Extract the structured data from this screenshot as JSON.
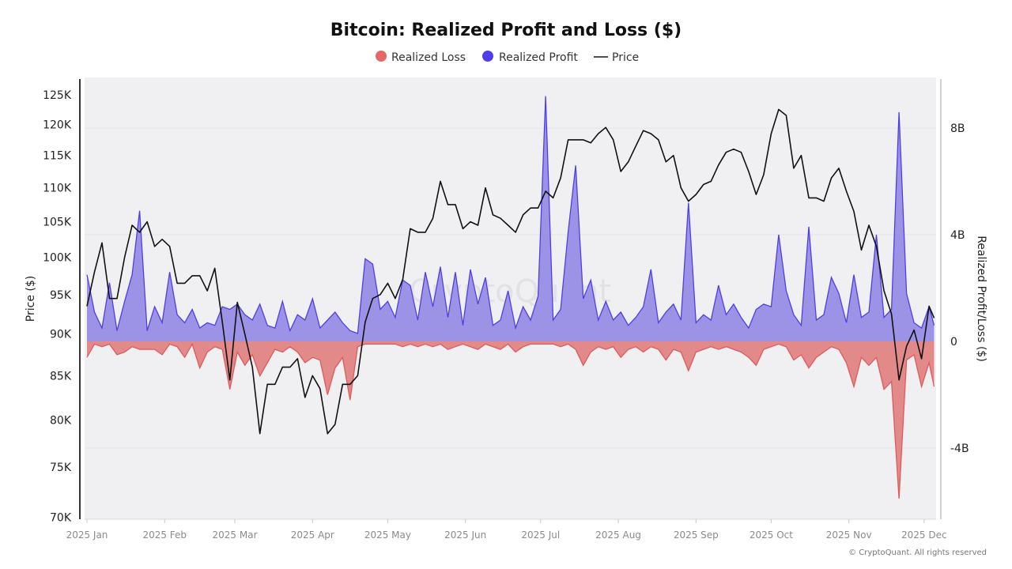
{
  "chart_data": {
    "type": "area",
    "title": "Bitcoin: Realized Profit and Loss ($)",
    "legend": {
      "placement": "top",
      "entries": [
        {
          "label": "Realized Loss",
          "marker": "circle",
          "color": "#e36868"
        },
        {
          "label": "Realized Profit",
          "marker": "circle",
          "color": "#4f3ee6"
        },
        {
          "label": "Price",
          "marker": "line",
          "color": "#111111"
        }
      ]
    },
    "y_left": {
      "label": "Price ($)",
      "scale": "log",
      "ylim": [
        69800,
        128000
      ],
      "ticks": [
        {
          "v": 125000,
          "t": "125K"
        },
        {
          "v": 120000,
          "t": "120K"
        },
        {
          "v": 115000,
          "t": "115K"
        },
        {
          "v": 110000,
          "t": "110K"
        },
        {
          "v": 105000,
          "t": "105K"
        },
        {
          "v": 100000,
          "t": "100K"
        },
        {
          "v": 95000,
          "t": "95K"
        },
        {
          "v": 90000,
          "t": "90K"
        },
        {
          "v": 85000,
          "t": "85K"
        },
        {
          "v": 80000,
          "t": "80K"
        },
        {
          "v": 75000,
          "t": "75K"
        },
        {
          "v": 70000,
          "t": "70K"
        }
      ]
    },
    "y_right": {
      "label": "Realized Profit/Loss ($)",
      "scale": "linear",
      "unit": "billions",
      "ylim": [
        -6.67,
        9.9
      ],
      "ticks": [
        {
          "v": 8,
          "t": "8B"
        },
        {
          "v": 4,
          "t": "4B"
        },
        {
          "v": 0,
          "t": "0"
        },
        {
          "v": -4,
          "t": "-4B"
        }
      ]
    },
    "grid": true,
    "x_ticks": [
      {
        "d": "2025-01-01",
        "t": "2025 Jan"
      },
      {
        "d": "2025-02-01",
        "t": "2025 Feb"
      },
      {
        "d": "2025-03-01",
        "t": "2025 Mar"
      },
      {
        "d": "2025-04-01",
        "t": "2025 Apr"
      },
      {
        "d": "2025-05-01",
        "t": "2025 May"
      },
      {
        "d": "2025-06-01",
        "t": "2025 Jun"
      },
      {
        "d": "2025-07-01",
        "t": "2025 Jul"
      },
      {
        "d": "2025-08-01",
        "t": "2025 Aug"
      },
      {
        "d": "2025-09-01",
        "t": "2025 Sep"
      },
      {
        "d": "2025-10-01",
        "t": "2025 Oct"
      },
      {
        "d": "2025-11-01",
        "t": "2025 Nov"
      },
      {
        "d": "2025-12-01",
        "t": "2025 Dec"
      }
    ],
    "dates": [
      "2025-01-01",
      "2025-01-04",
      "2025-01-07",
      "2025-01-10",
      "2025-01-13",
      "2025-01-16",
      "2025-01-19",
      "2025-01-22",
      "2025-01-25",
      "2025-01-28",
      "2025-01-31",
      "2025-02-03",
      "2025-02-06",
      "2025-02-09",
      "2025-02-12",
      "2025-02-15",
      "2025-02-18",
      "2025-02-21",
      "2025-02-24",
      "2025-02-27",
      "2025-03-02",
      "2025-03-05",
      "2025-03-08",
      "2025-03-11",
      "2025-03-14",
      "2025-03-17",
      "2025-03-20",
      "2025-03-23",
      "2025-03-26",
      "2025-03-29",
      "2025-04-01",
      "2025-04-04",
      "2025-04-07",
      "2025-04-10",
      "2025-04-13",
      "2025-04-16",
      "2025-04-19",
      "2025-04-22",
      "2025-04-25",
      "2025-04-28",
      "2025-05-01",
      "2025-05-04",
      "2025-05-07",
      "2025-05-10",
      "2025-05-13",
      "2025-05-16",
      "2025-05-19",
      "2025-05-22",
      "2025-05-25",
      "2025-05-28",
      "2025-05-31",
      "2025-06-03",
      "2025-06-06",
      "2025-06-09",
      "2025-06-12",
      "2025-06-15",
      "2025-06-18",
      "2025-06-21",
      "2025-06-24",
      "2025-06-27",
      "2025-06-30",
      "2025-07-03",
      "2025-07-06",
      "2025-07-09",
      "2025-07-12",
      "2025-07-15",
      "2025-07-18",
      "2025-07-21",
      "2025-07-24",
      "2025-07-27",
      "2025-07-30",
      "2025-08-02",
      "2025-08-05",
      "2025-08-08",
      "2025-08-11",
      "2025-08-14",
      "2025-08-17",
      "2025-08-20",
      "2025-08-23",
      "2025-08-26",
      "2025-08-29",
      "2025-09-01",
      "2025-09-04",
      "2025-09-07",
      "2025-09-10",
      "2025-09-13",
      "2025-09-16",
      "2025-09-19",
      "2025-09-22",
      "2025-09-25",
      "2025-09-28",
      "2025-10-01",
      "2025-10-04",
      "2025-10-07",
      "2025-10-10",
      "2025-10-13",
      "2025-10-16",
      "2025-10-19",
      "2025-10-22",
      "2025-10-25",
      "2025-10-28",
      "2025-10-31",
      "2025-11-03",
      "2025-11-06",
      "2025-11-09",
      "2025-11-12",
      "2025-11-15",
      "2025-11-18",
      "2025-11-21",
      "2025-11-24",
      "2025-11-27",
      "2025-11-30",
      "2025-12-03",
      "2025-12-05"
    ],
    "series": [
      {
        "name": "Price",
        "axis": "left",
        "color": "#111111",
        "values": [
          93500,
          98000,
          102000,
          94500,
          94500,
          100000,
          104500,
          103500,
          105000,
          101500,
          102500,
          101500,
          96500,
          96500,
          97500,
          97500,
          95500,
          98500,
          91500,
          84500,
          94000,
          90000,
          86000,
          78500,
          84000,
          84000,
          86000,
          86000,
          87000,
          82500,
          85000,
          83500,
          78500,
          79500,
          84000,
          84000,
          85000,
          91500,
          94500,
          95000,
          96500,
          94500,
          97000,
          104000,
          103500,
          103500,
          105500,
          111000,
          107500,
          107500,
          104000,
          105000,
          104500,
          110000,
          106000,
          105500,
          104500,
          103500,
          106000,
          107000,
          107000,
          109500,
          108500,
          111500,
          117500,
          117500,
          117500,
          117000,
          118500,
          119500,
          117500,
          112500,
          114000,
          116500,
          119000,
          118500,
          117500,
          114000,
          115000,
          110000,
          108000,
          109000,
          110500,
          111000,
          113500,
          115500,
          116000,
          115500,
          112500,
          109000,
          112000,
          118500,
          122500,
          121500,
          113000,
          115000,
          108500,
          108500,
          108000,
          111500,
          113000,
          109500,
          106500,
          101000,
          104500,
          101500,
          95500,
          92500,
          84500,
          88500,
          90500,
          87000,
          93500,
          92000
        ]
      },
      {
        "name": "Realized Profit",
        "axis": "right",
        "color": "#4f3ee6",
        "fill": "#9d93e6",
        "values": [
          2.5,
          1.1,
          0.5,
          2.2,
          0.4,
          1.5,
          2.5,
          4.9,
          0.4,
          1.3,
          0.7,
          2.6,
          1.0,
          0.7,
          1.2,
          0.5,
          0.7,
          0.6,
          1.3,
          1.2,
          1.4,
          1.0,
          0.8,
          1.4,
          0.6,
          0.5,
          1.5,
          0.4,
          1.0,
          0.8,
          1.6,
          0.5,
          0.8,
          1.1,
          0.7,
          0.4,
          0.3,
          3.1,
          2.9,
          1.2,
          1.5,
          0.9,
          2.3,
          2.1,
          0.8,
          2.6,
          1.3,
          2.8,
          0.9,
          2.6,
          0.6,
          2.7,
          1.4,
          2.4,
          0.6,
          0.8,
          1.9,
          0.5,
          1.3,
          0.8,
          1.7,
          9.2,
          0.8,
          1.2,
          4.1,
          6.6,
          1.6,
          2.3,
          0.8,
          1.5,
          0.8,
          1.1,
          0.6,
          0.9,
          1.3,
          2.7,
          0.7,
          1.1,
          1.4,
          0.8,
          5.2,
          0.7,
          1.0,
          0.8,
          2.1,
          1.0,
          1.4,
          0.9,
          0.5,
          1.2,
          1.4,
          1.3,
          4.0,
          1.9,
          1.0,
          0.6,
          4.3,
          0.8,
          1.0,
          2.4,
          1.8,
          0.7,
          2.5,
          0.9,
          1.1,
          4.0,
          0.9,
          1.2,
          8.6,
          1.8,
          0.7,
          0.5,
          1.3,
          0.6
        ]
      },
      {
        "name": "Realized Loss",
        "axis": "right",
        "color": "#e05a5a",
        "fill": "#e28a8a",
        "values": [
          -0.6,
          -0.1,
          -0.2,
          -0.1,
          -0.5,
          -0.4,
          -0.2,
          -0.3,
          -0.3,
          -0.3,
          -0.5,
          -0.1,
          -0.2,
          -0.6,
          -0.1,
          -1.0,
          -0.4,
          -0.2,
          -0.3,
          -1.8,
          -0.4,
          -0.9,
          -0.5,
          -1.3,
          -0.8,
          -0.3,
          -0.4,
          -0.2,
          -0.4,
          -0.8,
          -0.6,
          -0.7,
          -2.0,
          -1.0,
          -0.6,
          -2.2,
          -0.2,
          -0.1,
          -0.1,
          -0.1,
          -0.1,
          -0.1,
          -0.2,
          -0.1,
          -0.2,
          -0.1,
          -0.2,
          -0.1,
          -0.3,
          -0.2,
          -0.1,
          -0.2,
          -0.3,
          -0.1,
          -0.2,
          -0.3,
          -0.1,
          -0.4,
          -0.2,
          -0.1,
          -0.1,
          -0.1,
          -0.1,
          -0.2,
          -0.1,
          -0.3,
          -0.9,
          -0.4,
          -0.2,
          -0.3,
          -0.2,
          -0.6,
          -0.3,
          -0.2,
          -0.4,
          -0.2,
          -0.3,
          -0.7,
          -0.3,
          -0.4,
          -1.1,
          -0.4,
          -0.3,
          -0.2,
          -0.3,
          -0.2,
          -0.3,
          -0.4,
          -0.6,
          -0.9,
          -0.3,
          -0.2,
          -0.1,
          -0.2,
          -0.7,
          -0.5,
          -1.0,
          -0.6,
          -0.4,
          -0.2,
          -0.3,
          -0.8,
          -1.7,
          -0.6,
          -0.9,
          -0.6,
          -1.8,
          -1.5,
          -5.9,
          -0.7,
          -0.5,
          -1.7,
          -0.8,
          -1.7
        ]
      }
    ]
  },
  "watermark": "CryptoQuant",
  "credit": "© CryptoQuant. All rights reserved"
}
